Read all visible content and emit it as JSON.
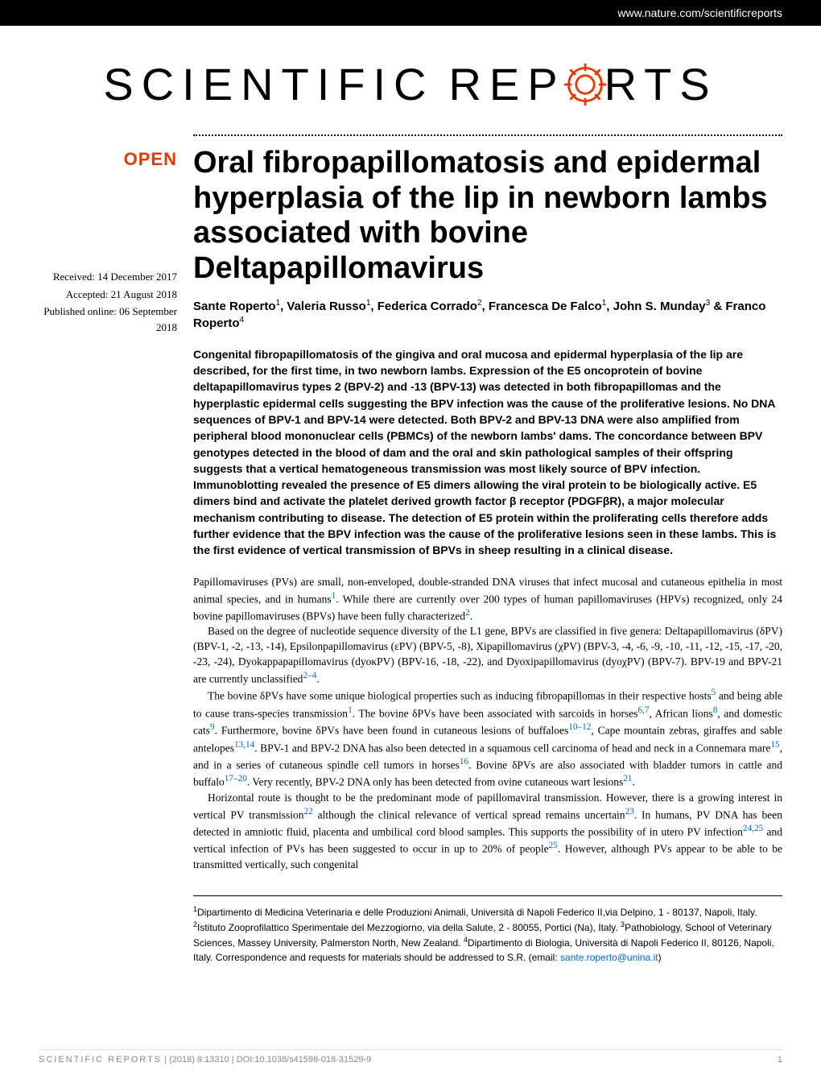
{
  "header": {
    "url": "www.nature.com/scientificreports"
  },
  "logo": {
    "part1": "SCIENTIFIC",
    "part2": "REP",
    "part3": "RTS"
  },
  "badge": "OPEN",
  "meta": {
    "received": "Received: 14 December 2017",
    "accepted": "Accepted: 21 August 2018",
    "published": "Published online: 06 September 2018"
  },
  "title": "Oral fibropapillomatosis and epidermal hyperplasia of the lip in newborn lambs associated with bovine Deltapapillomavirus",
  "authors_html": "Sante Roperto<sup>1</sup>, Valeria Russo<sup>1</sup>, Federica Corrado<sup>2</sup>, Francesca De Falco<sup>1</sup>, John S. Munday<sup>3</sup> & Franco Roperto<sup>4</sup>",
  "abstract": "Congenital fibropapillomatosis of the gingiva and oral mucosa and epidermal hyperplasia of the lip are described, for the first time, in two newborn lambs. Expression of the E5 oncoprotein of bovine deltapapillomavirus types 2 (BPV-2) and -13 (BPV-13) was detected in both fibropapillomas and the hyperplastic epidermal cells suggesting the BPV infection was the cause of the proliferative lesions. No DNA sequences of BPV-1 and BPV-14 were detected. Both BPV-2 and BPV-13 DNA were also amplified from peripheral blood mononuclear cells (PBMCs) of the newborn lambs' dams. The concordance between BPV genotypes detected in the blood of dam and the oral and skin pathological samples of their offspring suggests that a vertical hematogeneous transmission was most likely source of BPV infection. Immunoblotting revealed the presence of E5 dimers allowing the viral protein to be biologically active. E5 dimers bind and activate the platelet derived growth factor β receptor (PDGFβR), a major molecular mechanism contributing to disease. The detection of E5 protein within the proliferating cells therefore adds further evidence that the BPV infection was the cause of the proliferative lesions seen in these lambs. This is the first evidence of vertical transmission of BPVs in sheep resulting in a clinical disease.",
  "body": {
    "p1_a": "Papillomaviruses (PVs) are small, non-enveloped, double-stranded DNA viruses that infect mucosal and cutaneous epithelia in most animal species, and in humans",
    "p1_b": ". While there are currently over 200 types of human papillomaviruses (HPVs) recognized, only 24 bovine papillomaviruses (BPVs) have been fully characterized",
    "p2_a": "Based on the degree of nucleotide sequence diversity of the L1 gene, BPVs are classified in five genera: Deltapapillomavirus (δPV) (BPV-1, -2, -13, -14), Epsilonpapillomavirus (εPV) (BPV-5, -8), Xipapillomavirus (χPV) (BPV-3, -4, -6, -9, -10, -11, -12, -15, -17, -20, -23, -24), Dyokappapapillomavirus (dyoκPV) (BPV-16, -18, -22), and Dyoxipapillomavirus (dyoχPV) (BPV-7). BPV-19 and BPV-21 are currently unclassified",
    "p3_a": "The bovine δPVs have some unique biological properties such as inducing fibropapillomas in their respective hosts",
    "p3_b": " and being able to cause trans-species transmission",
    "p3_c": ". The bovine δPVs have been associated with sarcoids in horses",
    "p3_d": ", African lions",
    "p3_e": ", and domestic cats",
    "p3_f": ". Furthermore, bovine δPVs have been found in cutaneous lesions of buffaloes",
    "p3_g": ", Cape mountain zebras, giraffes and sable antelopes",
    "p3_h": ". BPV-1 and BPV-2 DNA has also been detected in a squamous cell carcinoma of head and neck in a Connemara mare",
    "p3_i": ", and in a series of cutaneous spindle cell tumors in horses",
    "p3_j": ". Bovine δPVs are also associated with bladder tumors in cattle and buffalo",
    "p3_k": ". Very recently, BPV-2 DNA only has been detected from ovine cutaneous wart lesions",
    "p4_a": "Horizontal route is thought to be the predominant mode of papillomaviral transmission. However, there is a growing interest in vertical PV transmission",
    "p4_b": " although the clinical relevance of vertical spread remains uncertain",
    "p4_c": ". In humans, PV DNA has been detected in amniotic fluid, placenta and umbilical cord blood samples. This supports the possibility of in utero PV infection",
    "p4_d": " and vertical infection of PVs has been suggested to occur in up to 20% of people",
    "p4_e": ". However, although PVs appear to be able to be transmitted vertically, such congenital"
  },
  "refs": {
    "r1": "1",
    "r2": "2",
    "r2_4": "2–4",
    "r5": "5",
    "r6_7": "6,7",
    "r8": "8",
    "r9": "9",
    "r10_12": "10–12",
    "r13_14": "13,14",
    "r15": "15",
    "r16": "16",
    "r17_20": "17–20",
    "r21": "21",
    "r22": "22",
    "r23": "23",
    "r24_25": "24,25",
    "r25": "25"
  },
  "affiliations_html": "<sup>1</sup>Dipartimento di Medicina Veterinaria e delle Produzioni Animali, Università di Napoli Federico II,via Delpino, 1 - 80137, Napoli, Italy. <sup>2</sup>Istituto Zooprofilattico Sperimentale del Mezzogiorno, via della Salute, 2 - 80055, Portici (Na), Italy. <sup>3</sup>Pathobiology, School of Veterinary Sciences, Massey University, Palmerston North, New Zealand. <sup>4</sup>Dipartimento di Biologia, Università di Napoli Federico II, 80126, Napoli, Italy. Correspondence and requests for materials should be addressed to S.R. (email: ",
  "email": "sante.roperto@unina.it",
  "footer": {
    "left_a": "SCIENTIFIC REPORTS",
    "left_b": " | (2018) 8:13310 | DOI:10.1038/s41598-018-31529-9",
    "page": "1"
  },
  "colors": {
    "accent": "#e63900",
    "link": "#0066cc",
    "footer": "#888888"
  }
}
